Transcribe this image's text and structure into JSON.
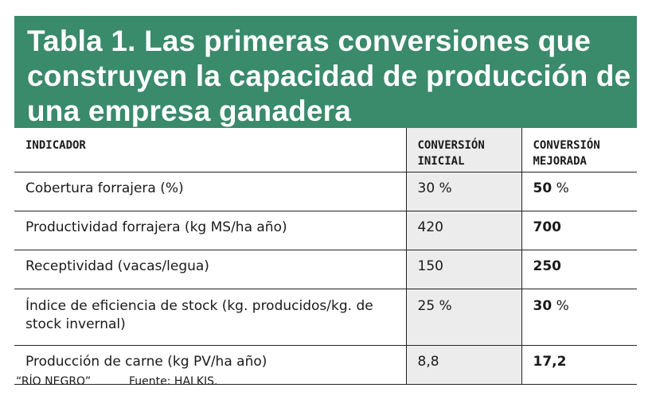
{
  "header": {
    "title": "Tabla 1. Las primeras conversiones que construyen la capacidad de producción de una empresa ganadera"
  },
  "table": {
    "columns": [
      "INDICADOR",
      "CONVERSIÓN INICIAL",
      "CONVERSIÓN MEJORADA"
    ],
    "rows": [
      {
        "indicator": "Cobertura forrajera (%)",
        "initial": "30 %",
        "improved": {
          "value": "50",
          "unit": "%"
        }
      },
      {
        "indicator": "Productividad forrajera (kg MS/ha año)",
        "initial": "420",
        "improved": {
          "value": "700"
        }
      },
      {
        "indicator": "Receptividad (vacas/legua)",
        "initial": "150",
        "improved": {
          "value": "250"
        }
      },
      {
        "indicator": "Índice de eficiencia de stock (kg. producidos/kg. de stock invernal)",
        "initial": "25 %",
        "improved": {
          "value": "30",
          "unit": "%"
        }
      },
      {
        "indicator": "Producción de carne (kg PV/ha año)",
        "initial": "8,8",
        "improved": {
          "value": "17,2"
        }
      }
    ]
  },
  "footer": {
    "credit": "“RÍO NEGRO”",
    "source": "Fuente: HALKIS."
  }
}
